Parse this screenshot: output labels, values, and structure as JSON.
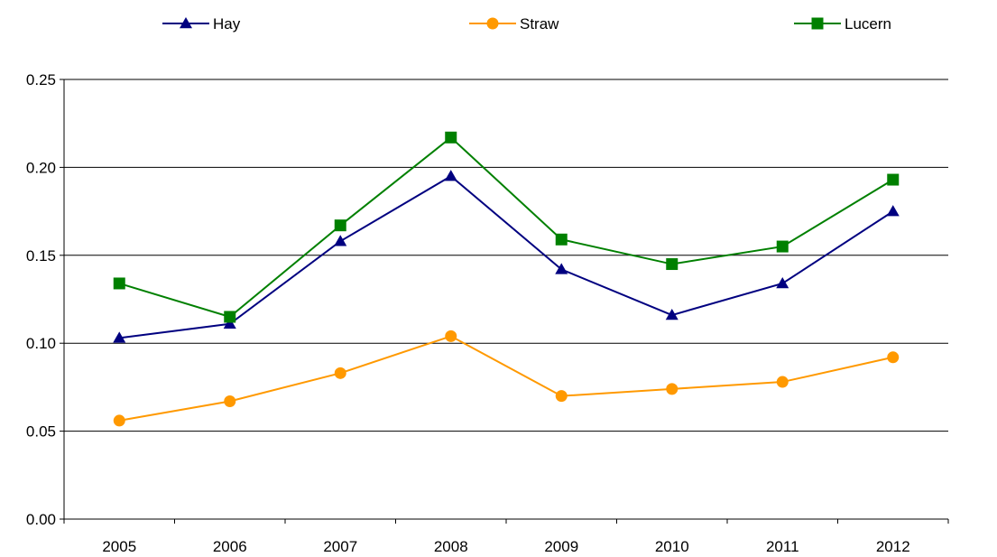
{
  "chart_data": {
    "type": "line",
    "title": "",
    "xlabel": "",
    "ylabel": "",
    "categories": [
      "2005",
      "2006",
      "2007",
      "2008",
      "2009",
      "2010",
      "2011",
      "2012"
    ],
    "ylim": [
      0,
      0.25
    ],
    "yticks": [
      "0.00",
      "0.05",
      "0.10",
      "0.15",
      "0.20",
      "0.25"
    ],
    "grid": "horizontal",
    "legend_position": "top",
    "series": [
      {
        "name": "Hay",
        "color": "#000080",
        "marker": "triangle",
        "values": [
          0.103,
          0.111,
          0.158,
          0.195,
          0.142,
          0.116,
          0.134,
          0.175
        ]
      },
      {
        "name": "Straw",
        "color": "#FF9900",
        "marker": "circle",
        "values": [
          0.056,
          0.067,
          0.083,
          0.104,
          0.07,
          0.074,
          0.078,
          0.092
        ]
      },
      {
        "name": "Lucern",
        "color": "#008000",
        "marker": "square",
        "values": [
          0.134,
          0.115,
          0.167,
          0.217,
          0.159,
          0.145,
          0.155,
          0.193
        ]
      }
    ]
  }
}
